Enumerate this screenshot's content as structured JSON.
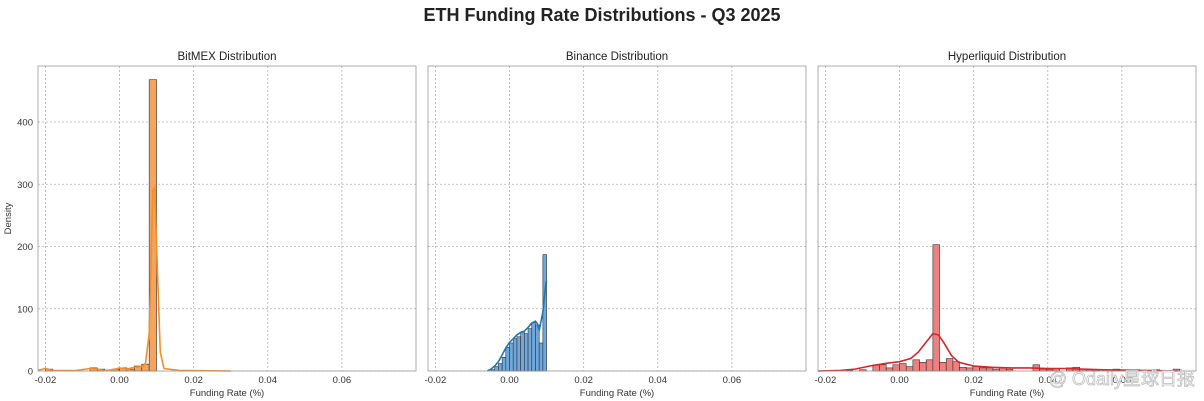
{
  "figure_title": "ETH Funding Rate Distributions - Q3 2025",
  "watermark": "@ Odaily星球日报",
  "chart_data": [
    {
      "type": "bar",
      "title": "BitMEX Distribution",
      "xlabel": "Funding Rate (%)",
      "ylabel": "Density",
      "xlim": [
        -0.022,
        0.08
      ],
      "ylim": [
        0,
        490
      ],
      "xticks": [
        -0.02,
        0.0,
        0.02,
        0.04,
        0.06
      ],
      "xtick_labels": [
        "-0.02",
        "0.00",
        "0.02",
        "0.04",
        "0.06"
      ],
      "yticks": [
        0,
        100,
        200,
        300,
        400
      ],
      "ytick_labels": [
        "0",
        "100",
        "200",
        "300",
        "400"
      ],
      "grid": true,
      "color": "#f4a45c",
      "kde_color": "#f28e2b",
      "bin_width": 0.002,
      "bins": [
        {
          "x": -0.02,
          "value": 3
        },
        {
          "x": -0.008,
          "value": 5
        },
        {
          "x": -0.006,
          "value": 3
        },
        {
          "x": -0.002,
          "value": 3
        },
        {
          "x": 0.0,
          "value": 5
        },
        {
          "x": 0.002,
          "value": 3
        },
        {
          "x": 0.004,
          "value": 8
        },
        {
          "x": 0.006,
          "value": 11
        },
        {
          "x": 0.008,
          "value": 468
        },
        {
          "x": 0.016,
          "value": 1
        }
      ],
      "kde": [
        [
          -0.022,
          1
        ],
        [
          -0.02,
          4
        ],
        [
          -0.018,
          1
        ],
        [
          -0.012,
          0.5
        ],
        [
          -0.008,
          4
        ],
        [
          -0.006,
          3
        ],
        [
          -0.004,
          1
        ],
        [
          -0.002,
          2
        ],
        [
          0.0,
          5
        ],
        [
          0.002,
          3
        ],
        [
          0.004,
          6
        ],
        [
          0.006,
          7
        ],
        [
          0.007,
          12
        ],
        [
          0.008,
          60
        ],
        [
          0.009,
          290
        ],
        [
          0.0095,
          295
        ],
        [
          0.01,
          200
        ],
        [
          0.011,
          30
        ],
        [
          0.012,
          4
        ],
        [
          0.016,
          1
        ],
        [
          0.03,
          0
        ]
      ]
    },
    {
      "type": "bar",
      "title": "Binance Distribution",
      "xlabel": "Funding Rate (%)",
      "xlim": [
        -0.022,
        0.08
      ],
      "ylim": [
        0,
        490
      ],
      "xticks": [
        -0.02,
        0.0,
        0.02,
        0.04,
        0.06
      ],
      "xtick_labels": [
        "-0.02",
        "0.00",
        "0.02",
        "0.04",
        "0.06"
      ],
      "yticks": [
        0,
        100,
        200,
        300,
        400
      ],
      "grid": true,
      "color": "#6fa8dc",
      "kde_color": "#1f77b4",
      "bin_width": 0.001,
      "bins": [
        {
          "x": -0.005,
          "value": 2
        },
        {
          "x": -0.004,
          "value": 7
        },
        {
          "x": -0.003,
          "value": 12
        },
        {
          "x": -0.002,
          "value": 22
        },
        {
          "x": -0.001,
          "value": 38
        },
        {
          "x": 0.0,
          "value": 45
        },
        {
          "x": 0.001,
          "value": 52
        },
        {
          "x": 0.002,
          "value": 55
        },
        {
          "x": 0.003,
          "value": 62
        },
        {
          "x": 0.004,
          "value": 60
        },
        {
          "x": 0.005,
          "value": 68
        },
        {
          "x": 0.006,
          "value": 78
        },
        {
          "x": 0.007,
          "value": 74
        },
        {
          "x": 0.008,
          "value": 45
        },
        {
          "x": 0.009,
          "value": 187
        }
      ],
      "kde": [
        [
          -0.006,
          0
        ],
        [
          -0.005,
          3
        ],
        [
          -0.004,
          8
        ],
        [
          -0.003,
          15
        ],
        [
          -0.002,
          26
        ],
        [
          -0.001,
          37
        ],
        [
          0.0,
          46
        ],
        [
          0.001,
          52
        ],
        [
          0.002,
          58
        ],
        [
          0.003,
          62
        ],
        [
          0.004,
          64
        ],
        [
          0.005,
          70
        ],
        [
          0.006,
          77
        ],
        [
          0.007,
          80
        ],
        [
          0.0075,
          76
        ],
        [
          0.008,
          65
        ],
        [
          0.009,
          95
        ],
        [
          0.0098,
          140
        ],
        [
          0.01,
          145
        ]
      ]
    },
    {
      "type": "bar",
      "title": "Hyperliquid Distribution",
      "xlabel": "Funding Rate (%)",
      "xlim": [
        -0.022,
        0.08
      ],
      "ylim": [
        0,
        490
      ],
      "xticks": [
        -0.02,
        0.0,
        0.02,
        0.04,
        0.06
      ],
      "xtick_labels": [
        "-0.02",
        "0.00",
        "0.02",
        "0.04",
        "0.06"
      ],
      "yticks": [
        0,
        100,
        200,
        300,
        400
      ],
      "grid": true,
      "color": "#f08080",
      "kde_color": "#d62728",
      "bin_width": 0.0018,
      "bins": [
        {
          "x": -0.0144,
          "value": 1
        },
        {
          "x": -0.0108,
          "value": 2
        },
        {
          "x": -0.0072,
          "value": 10
        },
        {
          "x": -0.0054,
          "value": 10
        },
        {
          "x": -0.0036,
          "value": 5
        },
        {
          "x": -0.0018,
          "value": 10
        },
        {
          "x": 0.0,
          "value": 12
        },
        {
          "x": 0.0018,
          "value": 7
        },
        {
          "x": 0.0036,
          "value": 18
        },
        {
          "x": 0.0054,
          "value": 14
        },
        {
          "x": 0.0072,
          "value": 18
        },
        {
          "x": 0.009,
          "value": 203
        },
        {
          "x": 0.0108,
          "value": 14
        },
        {
          "x": 0.0126,
          "value": 20
        },
        {
          "x": 0.0144,
          "value": 15
        },
        {
          "x": 0.0162,
          "value": 6
        },
        {
          "x": 0.018,
          "value": 5
        },
        {
          "x": 0.0198,
          "value": 7
        },
        {
          "x": 0.0216,
          "value": 5
        },
        {
          "x": 0.0234,
          "value": 5
        },
        {
          "x": 0.0252,
          "value": 3
        },
        {
          "x": 0.027,
          "value": 5
        },
        {
          "x": 0.0288,
          "value": 3
        },
        {
          "x": 0.036,
          "value": 10
        },
        {
          "x": 0.0378,
          "value": 3
        },
        {
          "x": 0.0396,
          "value": 2
        },
        {
          "x": 0.0414,
          "value": 4
        },
        {
          "x": 0.045,
          "value": 5
        },
        {
          "x": 0.0468,
          "value": 6
        },
        {
          "x": 0.0486,
          "value": 3
        },
        {
          "x": 0.0504,
          "value": 2
        },
        {
          "x": 0.0522,
          "value": 2
        },
        {
          "x": 0.0576,
          "value": 3
        },
        {
          "x": 0.063,
          "value": 2
        },
        {
          "x": 0.0684,
          "value": 2
        },
        {
          "x": 0.0738,
          "value": 3
        }
      ],
      "kde": [
        [
          -0.022,
          0
        ],
        [
          -0.016,
          1
        ],
        [
          -0.012,
          3
        ],
        [
          -0.008,
          8
        ],
        [
          -0.004,
          12
        ],
        [
          0.0,
          15
        ],
        [
          0.003,
          20
        ],
        [
          0.005,
          30
        ],
        [
          0.007,
          45
        ],
        [
          0.009,
          60
        ],
        [
          0.0105,
          58
        ],
        [
          0.012,
          45
        ],
        [
          0.014,
          25
        ],
        [
          0.016,
          14
        ],
        [
          0.02,
          8
        ],
        [
          0.025,
          6
        ],
        [
          0.03,
          5
        ],
        [
          0.035,
          5
        ],
        [
          0.04,
          4
        ],
        [
          0.045,
          4
        ],
        [
          0.05,
          3
        ],
        [
          0.055,
          2
        ],
        [
          0.06,
          1.5
        ],
        [
          0.065,
          1
        ],
        [
          0.07,
          0.5
        ],
        [
          0.075,
          0.2
        ]
      ]
    }
  ]
}
